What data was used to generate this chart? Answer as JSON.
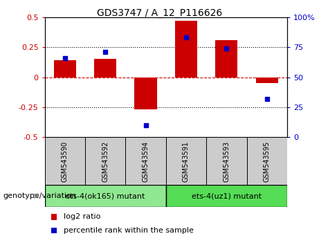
{
  "title": "GDS3747 / A_12_P116626",
  "samples": [
    "GSM543590",
    "GSM543592",
    "GSM543594",
    "GSM543591",
    "GSM543593",
    "GSM543595"
  ],
  "log2_ratio": [
    0.14,
    0.15,
    -0.27,
    0.47,
    0.31,
    -0.05
  ],
  "percentile_rank": [
    66,
    71,
    10,
    83,
    74,
    32
  ],
  "bar_color": "#cc0000",
  "dot_color": "#0000cc",
  "ylim_left": [
    -0.5,
    0.5
  ],
  "ylim_right": [
    0,
    100
  ],
  "yticks_left": [
    -0.5,
    -0.25,
    0,
    0.25,
    0.5
  ],
  "yticks_right": [
    0,
    25,
    50,
    75,
    100
  ],
  "groups": [
    {
      "label": "ets-4(ok165) mutant",
      "indices": [
        0,
        1,
        2
      ],
      "color": "#90e890"
    },
    {
      "label": "ets-4(uz1) mutant",
      "indices": [
        3,
        4,
        5
      ],
      "color": "#55dd55"
    }
  ],
  "genotype_label": "genotype/variation",
  "legend_items": [
    {
      "label": "log2 ratio",
      "color": "#cc0000"
    },
    {
      "label": "percentile rank within the sample",
      "color": "#0000cc"
    }
  ],
  "bar_width": 0.55,
  "hline_color": "#cc0000",
  "background_label": "#cccccc",
  "title_fontsize": 10,
  "label_fontsize": 7,
  "group_fontsize": 8,
  "legend_fontsize": 8
}
